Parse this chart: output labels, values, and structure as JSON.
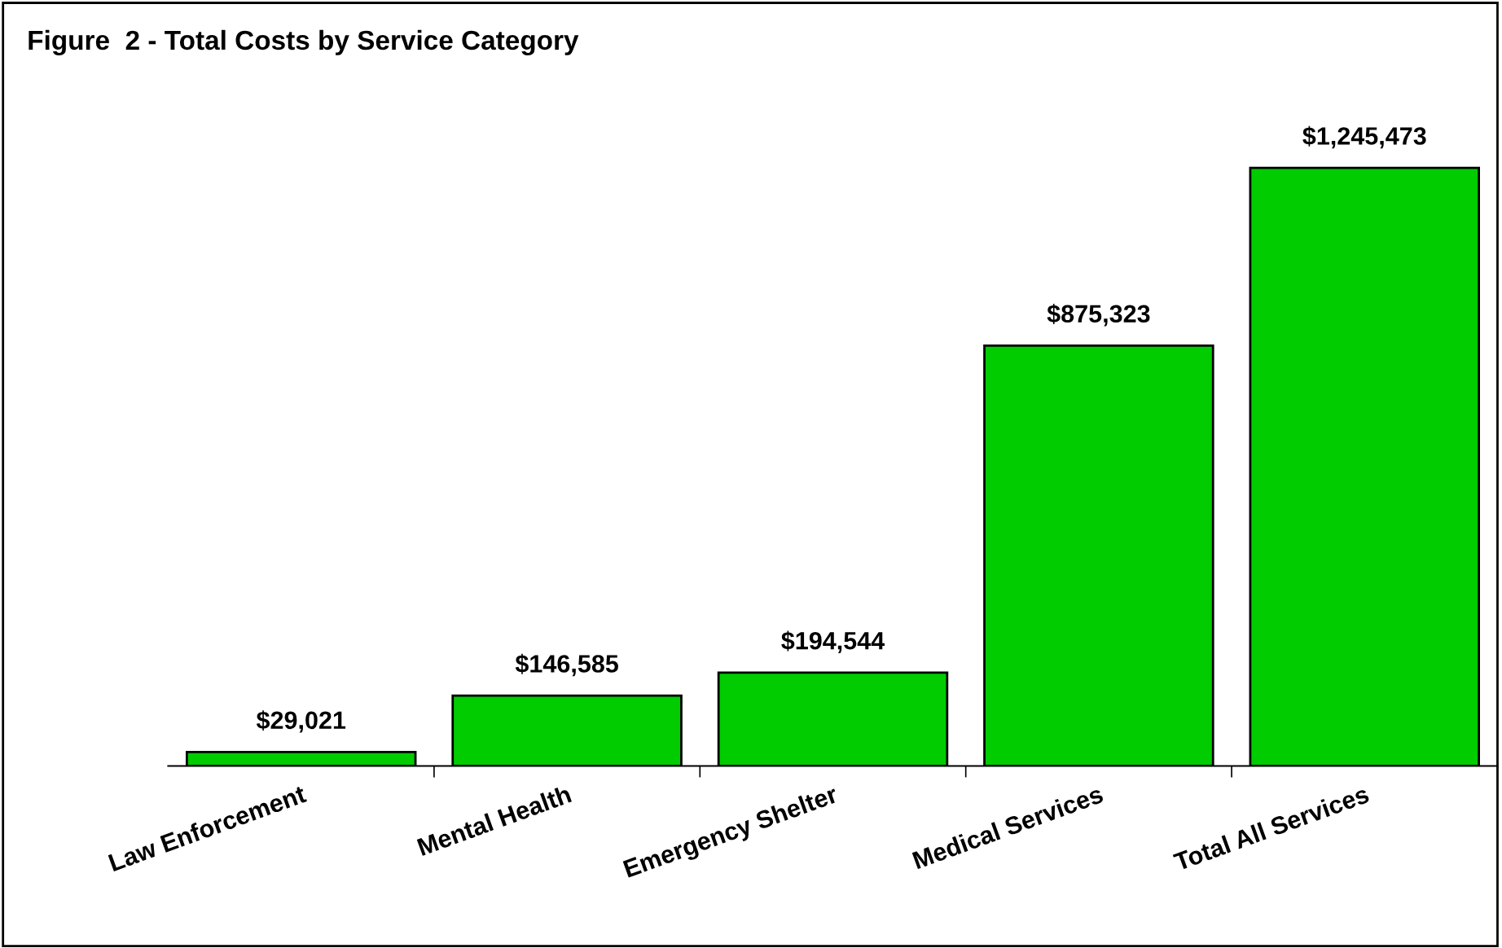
{
  "chart_data": {
    "type": "bar",
    "title": "Figure  2 - Total Costs by Service Category",
    "categories": [
      "Law Enforcement",
      "Mental Health",
      "Emergency Shelter",
      "Medical Services",
      "Total All Services"
    ],
    "values": [
      29021,
      146585,
      194544,
      875323,
      1245473
    ],
    "value_labels": [
      "$29,021",
      "$146,585",
      "$194,544",
      "$875,323",
      "$1,245,473"
    ],
    "color": "#00cc00"
  }
}
